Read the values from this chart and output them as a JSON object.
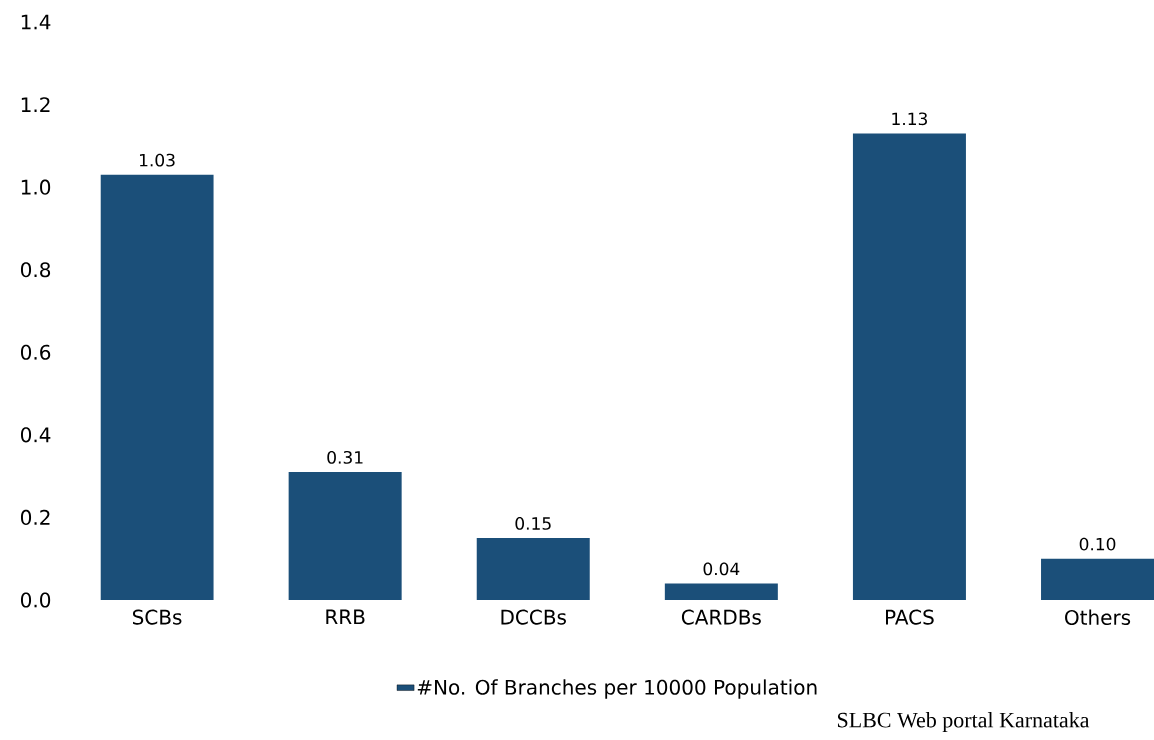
{
  "chart_data": {
    "type": "bar",
    "categories": [
      "SCBs",
      "RRB",
      "DCCBs",
      "CARDBs",
      "PACS",
      "Others"
    ],
    "series": [
      {
        "name": "#No. Of Branches per 10000 Population",
        "color": "#1b4f79",
        "values": [
          1.03,
          0.31,
          0.15,
          0.04,
          1.13,
          0.1
        ],
        "value_labels": [
          "1.03",
          "0.31",
          "0.15",
          "0.04",
          "1.13",
          "0.10"
        ]
      }
    ],
    "ylim": [
      0,
      1.4
    ],
    "yticks": [
      {
        "value": 0,
        "label": "0.0"
      },
      {
        "value": 0.2,
        "label": "0.2"
      },
      {
        "value": 0.4,
        "label": "0.4"
      },
      {
        "value": 0.6,
        "label": "0.6"
      },
      {
        "value": 0.8,
        "label": "0.8"
      },
      {
        "value": 1.0,
        "label": "1.0"
      },
      {
        "value": 1.2,
        "label": "1.2"
      },
      {
        "value": 1.4,
        "label": "1.4"
      }
    ],
    "grid": false,
    "legend": "bottom",
    "annotations": [
      "SLBC Web portal Karnataka"
    ]
  }
}
